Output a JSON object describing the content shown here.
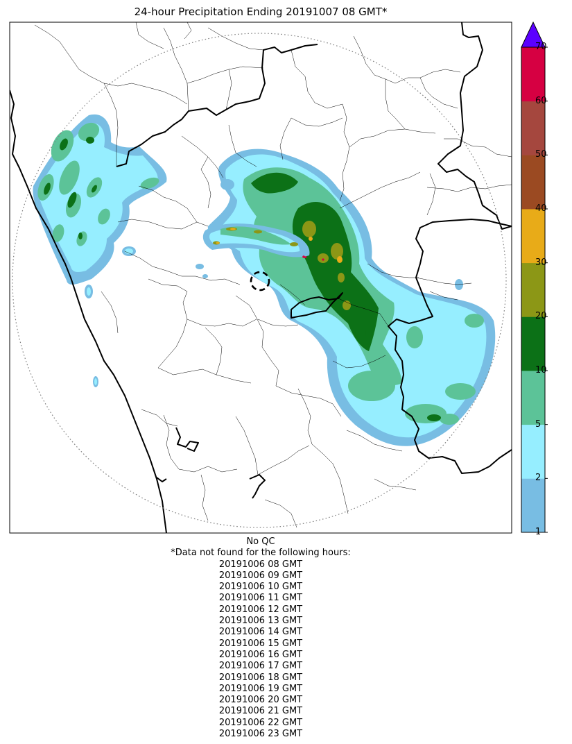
{
  "title": "24-hour Precipitation Ending 20191007 08 GMT*",
  "colorbar": {
    "levels": [
      {
        "value": "1",
        "color": "#78bde3"
      },
      {
        "value": "2",
        "color": "#96eeff"
      },
      {
        "value": "5",
        "color": "#5cc398"
      },
      {
        "value": "10",
        "color": "#0c7117"
      },
      {
        "value": "20",
        "color": "#8c9716"
      },
      {
        "value": "30",
        "color": "#e8ab18"
      },
      {
        "value": "40",
        "color": "#9b4a22"
      },
      {
        "value": "50",
        "color": "#a5473e"
      },
      {
        "value": "60",
        "color": "#d60042"
      },
      {
        "value": "70",
        "color": ""
      }
    ],
    "over_color": "#5b00ff"
  },
  "footer": {
    "qc_status": "No QC",
    "missing_header": "*Data not found for the following hours:",
    "missing_hours": [
      "20191006 08 GMT",
      "20191006 09 GMT",
      "20191006 10 GMT",
      "20191006 11 GMT",
      "20191006 12 GMT",
      "20191006 13 GMT",
      "20191006 14 GMT",
      "20191006 15 GMT",
      "20191006 16 GMT",
      "20191006 17 GMT",
      "20191006 18 GMT",
      "20191006 19 GMT",
      "20191006 20 GMT",
      "20191006 21 GMT",
      "20191006 22 GMT",
      "20191006 23 GMT"
    ]
  }
}
